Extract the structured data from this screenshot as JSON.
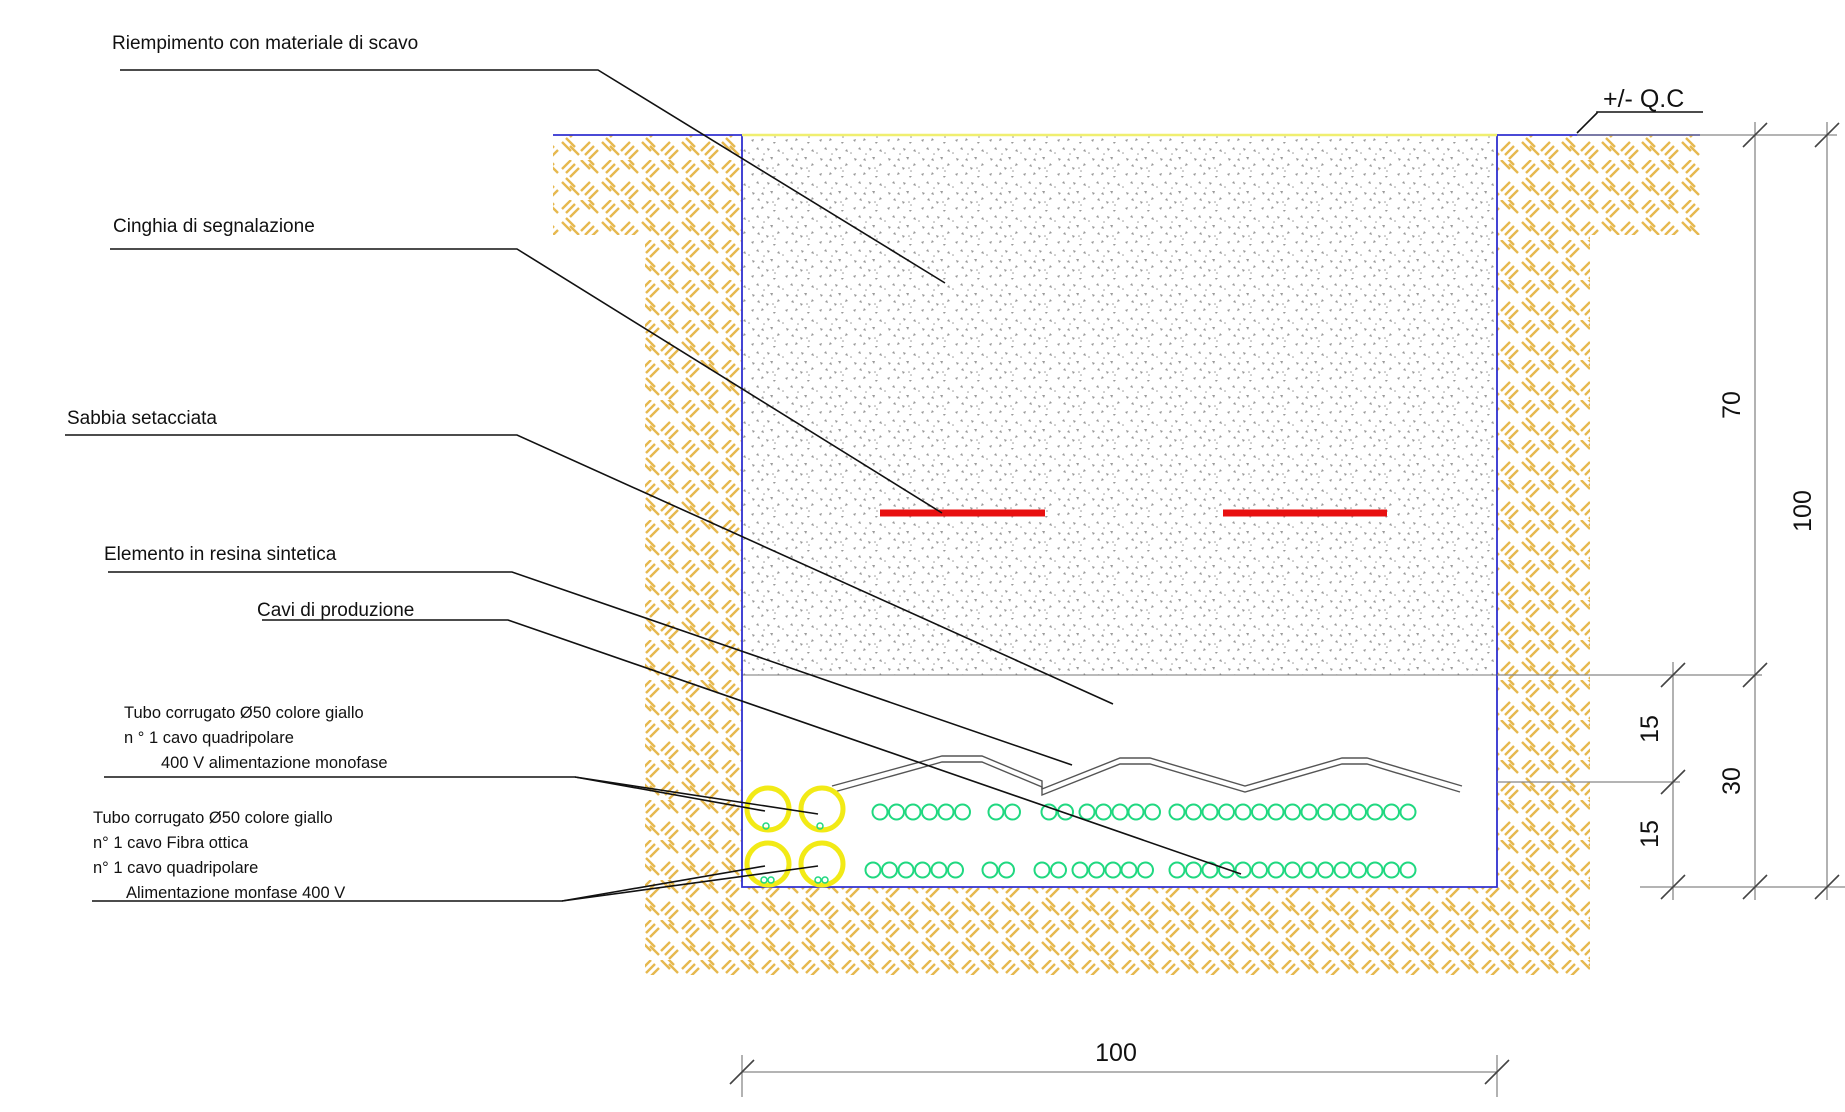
{
  "labels": {
    "riempimento": "Riempimento con materiale di scavo",
    "cinghia": "Cinghia di segnalazione",
    "sabbia": "Sabbia setacciata",
    "elemento": "Elemento in resina sintetica",
    "cavi": "Cavi di produzione",
    "tubo1": [
      "Tubo corrugato Ø50 colore giallo",
      "n ° 1 cavo quadripolare",
      "400 V alimentazione monofase"
    ],
    "tubo2": [
      "Tubo corrugato Ø50 colore giallo",
      "n° 1 cavo Fibra ottica",
      "n° 1 cavo quadripolare",
      "Alimentazione monfase 400 V"
    ]
  },
  "reference_level": "+/- Q.C",
  "dimensions": {
    "width": "100",
    "backfill_depth": "70",
    "total_depth": "100",
    "sand_layer": "30",
    "sand_upper": "15",
    "sand_lower": "15"
  },
  "colors": {
    "soil_hatch": "#e6b84e",
    "trench_outline": "#3030d0",
    "warning_tape": "#e81010",
    "conduit": "#f2ea16",
    "cables": "#20d880",
    "ground_line": "#f0ef70"
  }
}
